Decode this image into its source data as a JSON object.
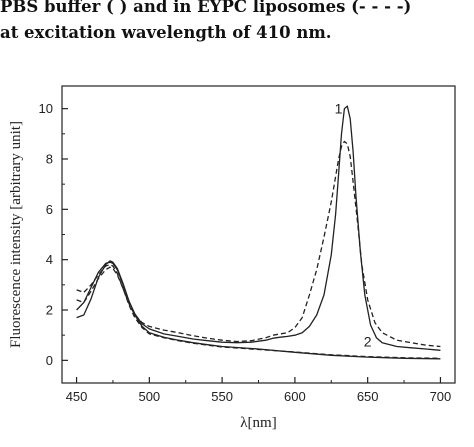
{
  "caption": {
    "line1": "PBS buffer (        ) and in EYPC liposomes (- - - -)",
    "line2": "at excitation wavelength of 410 nm."
  },
  "chart_data": {
    "type": "line",
    "xlabel": "λ[nm]",
    "ylabel": "Fluorescence intensity [arbitrary unit]",
    "xlim": [
      440,
      710
    ],
    "ylim": [
      -0.9,
      10.9
    ],
    "xticks": [
      450,
      500,
      550,
      600,
      650,
      700
    ],
    "yticks": [
      0,
      2,
      4,
      6,
      8,
      10
    ],
    "grid": false,
    "annotations": [
      "1",
      "2"
    ],
    "series": [
      {
        "label": "1",
        "style": "solid",
        "x": [
          450,
          455,
          460,
          465,
          470,
          473,
          475,
          478,
          482,
          486,
          490,
          495,
          500,
          510,
          520,
          530,
          540,
          550,
          560,
          570,
          580,
          585,
          590,
          595,
          600,
          605,
          610,
          615,
          620,
          625,
          628,
          630,
          632,
          634,
          636,
          638,
          640,
          642,
          645,
          648,
          652,
          656,
          660,
          670,
          680,
          690,
          700
        ],
        "y": [
          2.0,
          2.3,
          2.9,
          3.5,
          3.85,
          3.9,
          3.85,
          3.6,
          3.0,
          2.35,
          1.85,
          1.45,
          1.25,
          1.05,
          0.95,
          0.85,
          0.78,
          0.72,
          0.7,
          0.72,
          0.8,
          0.88,
          0.92,
          0.95,
          1.0,
          1.1,
          1.35,
          1.8,
          2.6,
          4.2,
          5.8,
          7.4,
          9.0,
          10.0,
          10.1,
          9.6,
          8.3,
          6.5,
          4.3,
          2.6,
          1.4,
          0.9,
          0.7,
          0.55,
          0.5,
          0.45,
          0.4
        ]
      },
      {
        "label": "1",
        "style": "dashed",
        "x": [
          450,
          455,
          460,
          465,
          470,
          473,
          475,
          478,
          482,
          486,
          490,
          495,
          500,
          510,
          520,
          530,
          540,
          550,
          560,
          570,
          580,
          585,
          590,
          595,
          600,
          605,
          610,
          615,
          620,
          625,
          628,
          630,
          632,
          634,
          636,
          638,
          640,
          643,
          646,
          650,
          655,
          660,
          670,
          680,
          690,
          700
        ],
        "y": [
          2.8,
          2.7,
          3.0,
          3.4,
          3.75,
          3.8,
          3.75,
          3.45,
          2.85,
          2.25,
          1.8,
          1.5,
          1.35,
          1.2,
          1.1,
          0.98,
          0.88,
          0.8,
          0.75,
          0.78,
          0.9,
          1.0,
          1.05,
          1.1,
          1.3,
          1.7,
          2.6,
          3.6,
          4.9,
          6.3,
          7.3,
          8.0,
          8.5,
          8.7,
          8.6,
          8.1,
          7.1,
          5.5,
          3.8,
          2.4,
          1.5,
          1.1,
          0.8,
          0.7,
          0.6,
          0.55
        ]
      },
      {
        "label": "2",
        "style": "solid",
        "x": [
          450,
          455,
          460,
          465,
          470,
          473,
          475,
          478,
          482,
          486,
          490,
          495,
          500,
          510,
          520,
          530,
          540,
          550,
          575,
          600,
          625,
          650,
          675,
          700
        ],
        "y": [
          1.7,
          1.8,
          2.45,
          3.3,
          3.8,
          3.95,
          3.9,
          3.65,
          3.05,
          2.35,
          1.8,
          1.35,
          1.1,
          0.92,
          0.8,
          0.7,
          0.62,
          0.55,
          0.45,
          0.32,
          0.2,
          0.13,
          0.08,
          0.06
        ]
      },
      {
        "label": "2",
        "style": "dashed",
        "x": [
          450,
          455,
          460,
          465,
          470,
          473,
          475,
          478,
          482,
          486,
          490,
          495,
          500,
          510,
          520,
          530,
          540,
          550,
          575,
          600,
          625,
          650,
          675,
          700
        ],
        "y": [
          2.4,
          2.3,
          2.75,
          3.25,
          3.6,
          3.7,
          3.65,
          3.4,
          2.85,
          2.2,
          1.7,
          1.3,
          1.05,
          0.9,
          0.78,
          0.68,
          0.6,
          0.53,
          0.43,
          0.33,
          0.22,
          0.15,
          0.1,
          0.08
        ]
      }
    ]
  }
}
